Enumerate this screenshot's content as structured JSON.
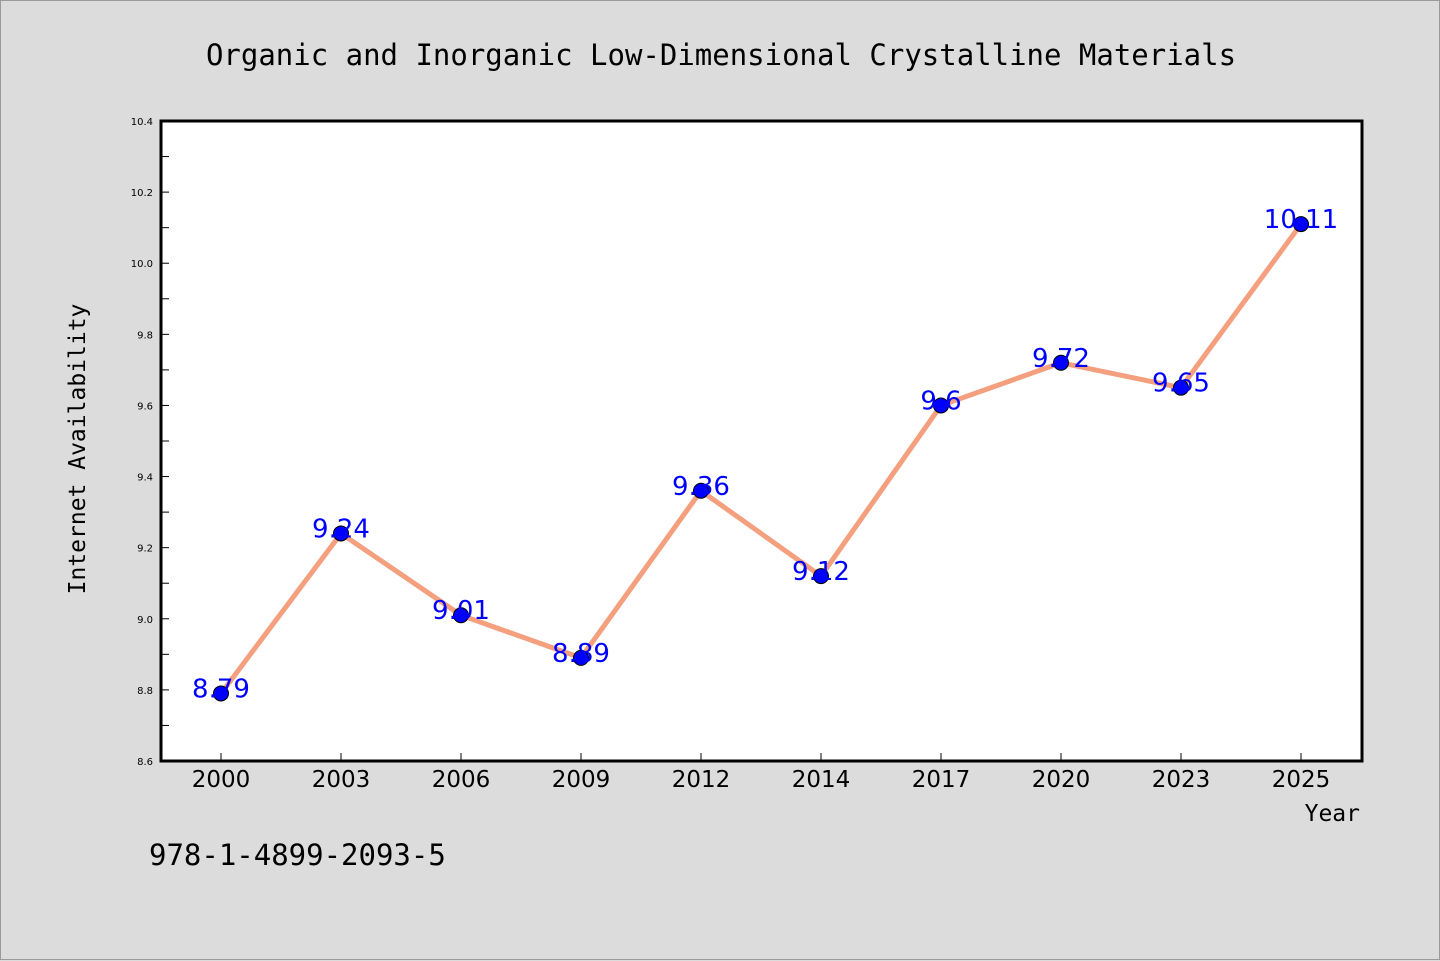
{
  "chart_data": {
    "type": "line",
    "title": "Organic and Inorganic Low-Dimensional Crystalline Materials",
    "xlabel": "Year",
    "ylabel": "Internet Availability",
    "categories": [
      "2000",
      "2003",
      "2006",
      "2009",
      "2012",
      "2014",
      "2017",
      "2020",
      "2023",
      "2025"
    ],
    "values": [
      8.79,
      9.24,
      9.01,
      8.89,
      9.36,
      9.12,
      9.6,
      9.72,
      9.65,
      10.11
    ],
    "data_labels": [
      "8.79",
      "9.24",
      "9.01",
      "8.89",
      "9.36",
      "9.12",
      "9.6",
      "9.72",
      "9.65",
      "10.11"
    ],
    "ylim": [
      8.6,
      10.4
    ],
    "yticks": [
      "8.6",
      "8.8",
      "9.0",
      "9.2",
      "9.4",
      "9.6",
      "9.8",
      "10.0",
      "10.2",
      "10.4"
    ],
    "grid": false,
    "legend": "none",
    "line_color": "#f4a07e",
    "marker_color": "#0000ff",
    "label_color": "#0000ff"
  },
  "footer": {
    "isbn": "978-1-4899-2093-5"
  }
}
